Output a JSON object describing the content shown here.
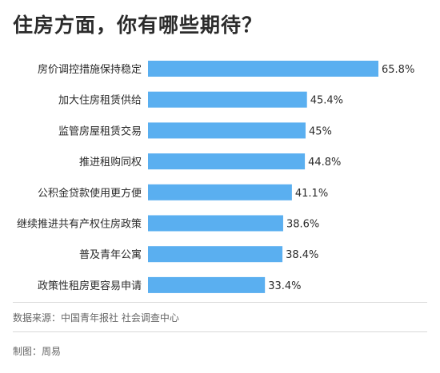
{
  "chart_data": {
    "type": "bar",
    "orientation": "horizontal",
    "title": "住房方面，你有哪些期待？",
    "categories": [
      "房价调控措施保持稳定",
      "加大住房租赁供给",
      "监管房屋租赁交易",
      "推进租购同权",
      "公积金贷款使用更方便",
      "继续推进共有产权住房政策",
      "普及青年公寓",
      "政策性租房更容易申请"
    ],
    "values": [
      65.8,
      45.4,
      45,
      44.8,
      41.1,
      38.6,
      38.4,
      33.4
    ],
    "value_labels": [
      "65.8%",
      "45.4%",
      "45%",
      "44.8%",
      "41.1%",
      "38.6%",
      "38.4%",
      "33.4%"
    ],
    "xlim": [
      0,
      65.8
    ],
    "grid": false,
    "bar_color": "#5aaff0"
  },
  "footer": {
    "source": "数据来源：中国青年报社 社会调查中心",
    "credit": "制图：周易"
  },
  "colors": {
    "bar": "#5aaff0",
    "text": "#2b2b2b"
  }
}
